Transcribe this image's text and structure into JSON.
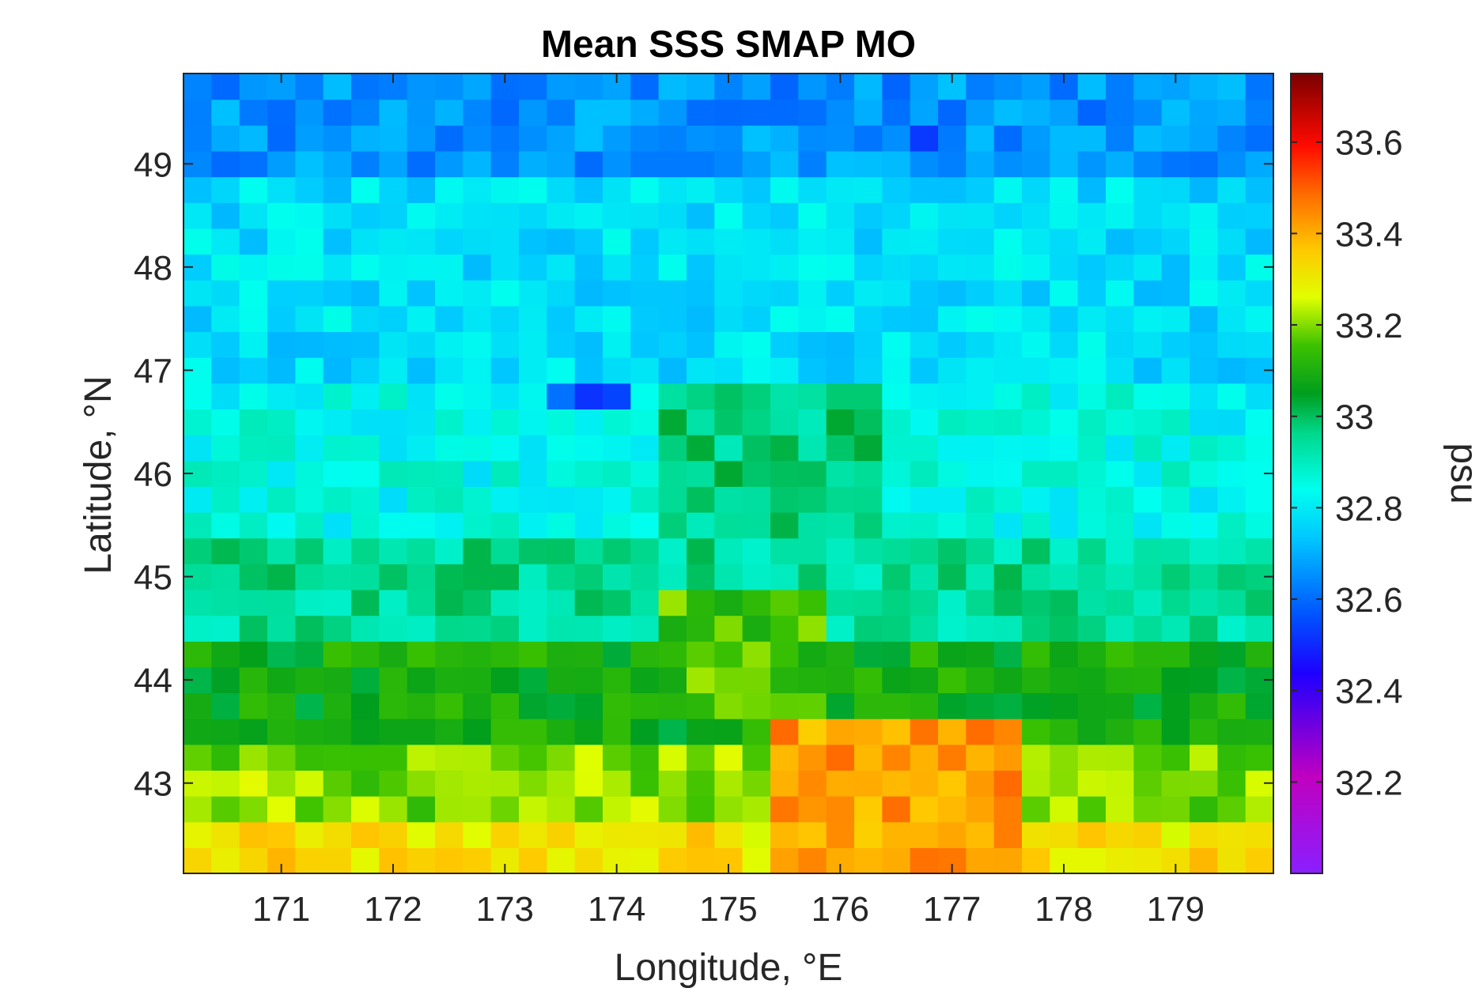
{
  "chart_data": {
    "type": "heatmap",
    "title": "Mean SSS SMAP MO",
    "xlabel": "Longitude, °E",
    "ylabel": "Latitude, °N",
    "colorbar_label": "psu",
    "xlim": [
      170.125,
      179.875
    ],
    "ylim": [
      42.125,
      49.875
    ],
    "xticks": [
      171,
      172,
      173,
      174,
      175,
      176,
      177,
      178,
      179
    ],
    "xtick_labels": [
      "171",
      "172",
      "173",
      "174",
      "175",
      "176",
      "177",
      "178",
      "179"
    ],
    "yticks": [
      43,
      44,
      45,
      46,
      47,
      48,
      49
    ],
    "ytick_labels": [
      "43",
      "44",
      "45",
      "46",
      "47",
      "48",
      "49"
    ],
    "color_range": [
      32.0,
      33.75
    ],
    "cticks": [
      32.2,
      32.4,
      32.6,
      32.8,
      33,
      33.2,
      33.4,
      33.6
    ],
    "ctick_labels": [
      "32.2",
      "32.4",
      "32.6",
      "32.8",
      "33",
      "33.2",
      "33.4",
      "33.6"
    ],
    "colormap": "jet-like (purple-blue-cyan-green-yellow-red-darkred)",
    "grid": false,
    "cell_size_deg": 0.25,
    "grid_dims": {
      "cols": 39,
      "rows": 31
    },
    "value_bands_by_latitude": [
      {
        "lat_range": [
          49.0,
          49.875
        ],
        "typical_psu": 32.66
      },
      {
        "lat_range": [
          47.0,
          49.0
        ],
        "typical_psu": 32.78
      },
      {
        "lat_range": [
          45.5,
          47.0
        ],
        "typical_psu": 32.84
      },
      {
        "lat_range": [
          44.5,
          45.5
        ],
        "typical_psu": 32.95
      },
      {
        "lat_range": [
          43.5,
          44.5
        ],
        "typical_psu": 33.08
      },
      {
        "lat_range": [
          42.75,
          43.5
        ],
        "typical_psu": 33.2
      },
      {
        "lat_range": [
          42.125,
          42.75
        ],
        "typical_psu": 33.32
      }
    ],
    "notable_features": [
      {
        "lon_range": [
          175.5,
          177.75
        ],
        "lat_range": [
          42.125,
          43.75
        ],
        "typical_psu": 33.42
      },
      {
        "lon_range": [
          174.5,
          176.5
        ],
        "lat_range": [
          45.5,
          47.0
        ],
        "typical_psu": 32.97
      },
      {
        "lon_range": [
          174.5,
          176.0
        ],
        "lat_range": [
          43.75,
          45.0
        ],
        "typical_psu": 33.15
      },
      {
        "lon_range": [
          173.5,
          174.25
        ],
        "lat_range": [
          46.75,
          47.0
        ],
        "typical_psu": 32.58
      },
      {
        "lon_range": [
          176.75,
          177.25
        ],
        "lat_range": [
          49.25,
          49.5
        ],
        "typical_psu": 32.57
      }
    ]
  }
}
